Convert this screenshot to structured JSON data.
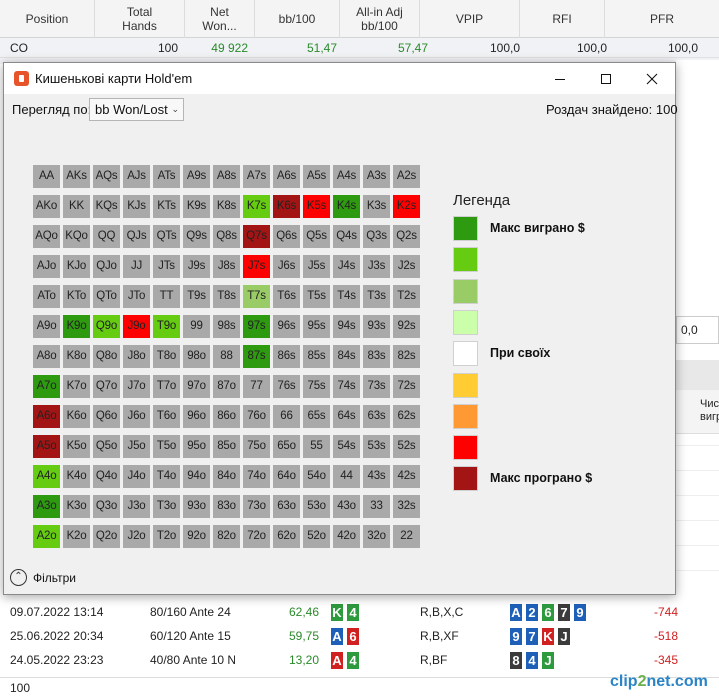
{
  "table": {
    "columns": [
      "Position",
      "Total\nHands",
      "Net\nWon...",
      "bb/100",
      "All-in Adj\nbb/100",
      "VPIP",
      "RFI",
      "PFR"
    ],
    "row": {
      "position": "CO",
      "hands": "100",
      "net_won": "49 922",
      "bb100": "51,47",
      "allin": "57,47",
      "vpip": "100,0",
      "rfi": "100,0",
      "pfr": "100,0"
    },
    "right_partial": {
      "box_value": "0,0",
      "col_header": "Чис\nвигр"
    }
  },
  "bottom_rows": [
    {
      "date": "09.07.2022 13:14",
      "stakes": "80/160 Ante 24 N",
      "bb": "62,46",
      "hole": [
        {
          "r": "K",
          "c": "green"
        },
        {
          "r": "4",
          "c": "green"
        }
      ],
      "action": "R,B,X,C",
      "board": [
        {
          "r": "A",
          "c": "blue"
        },
        {
          "r": "2",
          "c": "blue"
        },
        {
          "r": "6",
          "c": "green"
        },
        {
          "r": "7",
          "c": "dark"
        },
        {
          "r": "9",
          "c": "blue"
        }
      ],
      "net": "-744"
    },
    {
      "date": "25.06.2022 20:34",
      "stakes": "60/120 Ante 15 N",
      "bb": "59,75",
      "hole": [
        {
          "r": "A",
          "c": "blue"
        },
        {
          "r": "6",
          "c": "red"
        }
      ],
      "action": "R,B,XF",
      "board": [
        {
          "r": "9",
          "c": "blue"
        },
        {
          "r": "7",
          "c": "blue"
        },
        {
          "r": "K",
          "c": "red"
        },
        {
          "r": "J",
          "c": "dark"
        }
      ],
      "net": "-518"
    },
    {
      "date": "24.05.2022 23:23",
      "stakes": "40/80 Ante 10 N",
      "bb": "13,20",
      "hole": [
        {
          "r": "A",
          "c": "red"
        },
        {
          "r": "4",
          "c": "green"
        }
      ],
      "action": "R,BF",
      "board": [
        {
          "r": "8",
          "c": "dark"
        },
        {
          "r": "4",
          "c": "blue"
        },
        {
          "r": "J",
          "c": "green"
        }
      ],
      "net": "-345"
    }
  ],
  "footer": {
    "count": "100",
    "watermark": "clip2net.com"
  },
  "window": {
    "title": "Кишенькові карти Hold'em",
    "view_label": "Перегляд по:",
    "view_value": "bb Won/Lost",
    "found": "Роздач знайдено: 100",
    "filters": "Фільтри"
  },
  "legend": {
    "title": "Легенда",
    "items": [
      {
        "color": "#2e9a10",
        "label": "Макс виграно $"
      },
      {
        "color": "#66cc11",
        "label": ""
      },
      {
        "color": "#99cc66",
        "label": ""
      },
      {
        "color": "#ccffaa",
        "label": ""
      },
      {
        "color": "#ffffff",
        "label": "При своїх"
      },
      {
        "color": "#ffcc33",
        "label": ""
      },
      {
        "color": "#ff9933",
        "label": ""
      },
      {
        "color": "#ff0000",
        "label": ""
      },
      {
        "color": "#a31515",
        "label": "Макс програно $"
      }
    ]
  },
  "matrix": {
    "ranks": [
      "A",
      "K",
      "Q",
      "J",
      "T",
      "9",
      "8",
      "7",
      "6",
      "5",
      "4",
      "3",
      "2"
    ],
    "default_color": "#a9a9a9",
    "highlights": {
      "K7s": "#66cc11",
      "K6s": "#a31515",
      "K5s": "#ff0000",
      "K4s": "#2e9a10",
      "K2s": "#ff0000",
      "Q7s": "#a31515",
      "J7s": "#ff0000",
      "T7s": "#99cc66",
      "K9o": "#2e9a10",
      "Q9o": "#66cc11",
      "J9o": "#ff0000",
      "T9o": "#66cc11",
      "97s": "#2e9a10",
      "87s": "#2e9a10",
      "A7o": "#2e9a10",
      "A6o": "#a31515",
      "A5o": "#a31515",
      "A4o": "#66cc11",
      "A3o": "#2e9a10",
      "A2o": "#66cc11"
    }
  }
}
